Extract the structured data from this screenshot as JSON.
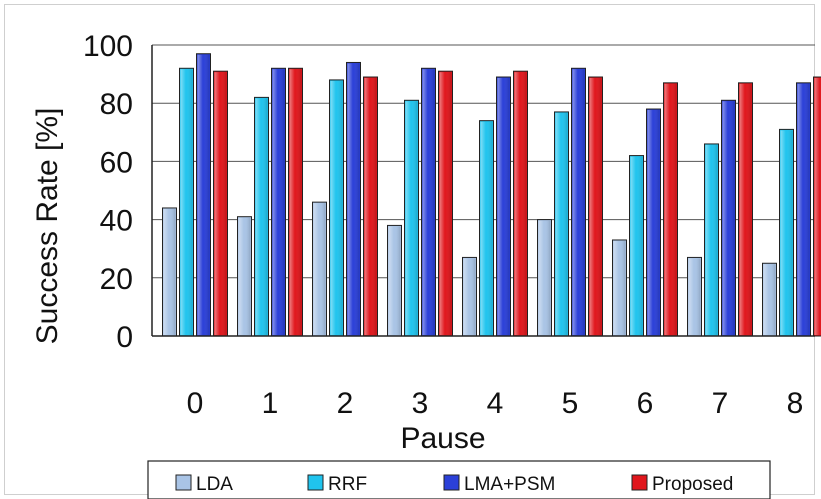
{
  "chart_data": {
    "type": "bar",
    "xlabel": "Pause",
    "ylabel": "Success Rate [%]",
    "ylim": [
      0,
      100
    ],
    "yticks": [
      0,
      20,
      40,
      60,
      80,
      100
    ],
    "categories": [
      "0",
      "1",
      "2",
      "3",
      "4",
      "5",
      "6",
      "7",
      "8"
    ],
    "grid": "horizontal",
    "legend_position": "bottom",
    "series": [
      {
        "name": "LDA",
        "color": "#a9c4e6",
        "values": [
          44,
          41,
          46,
          38,
          27,
          40,
          33,
          27,
          25
        ]
      },
      {
        "name": "RRF",
        "color": "#20c4ee",
        "values": [
          92,
          82,
          88,
          81,
          74,
          77,
          62,
          66,
          71
        ]
      },
      {
        "name": "LMA+PSM",
        "color": "#2b40d8",
        "values": [
          97,
          92,
          94,
          92,
          89,
          92,
          78,
          81,
          87
        ]
      },
      {
        "name": "Proposed",
        "color": "#e0161c",
        "values": [
          91,
          92,
          89,
          91,
          91,
          89,
          87,
          87,
          89
        ]
      }
    ]
  }
}
